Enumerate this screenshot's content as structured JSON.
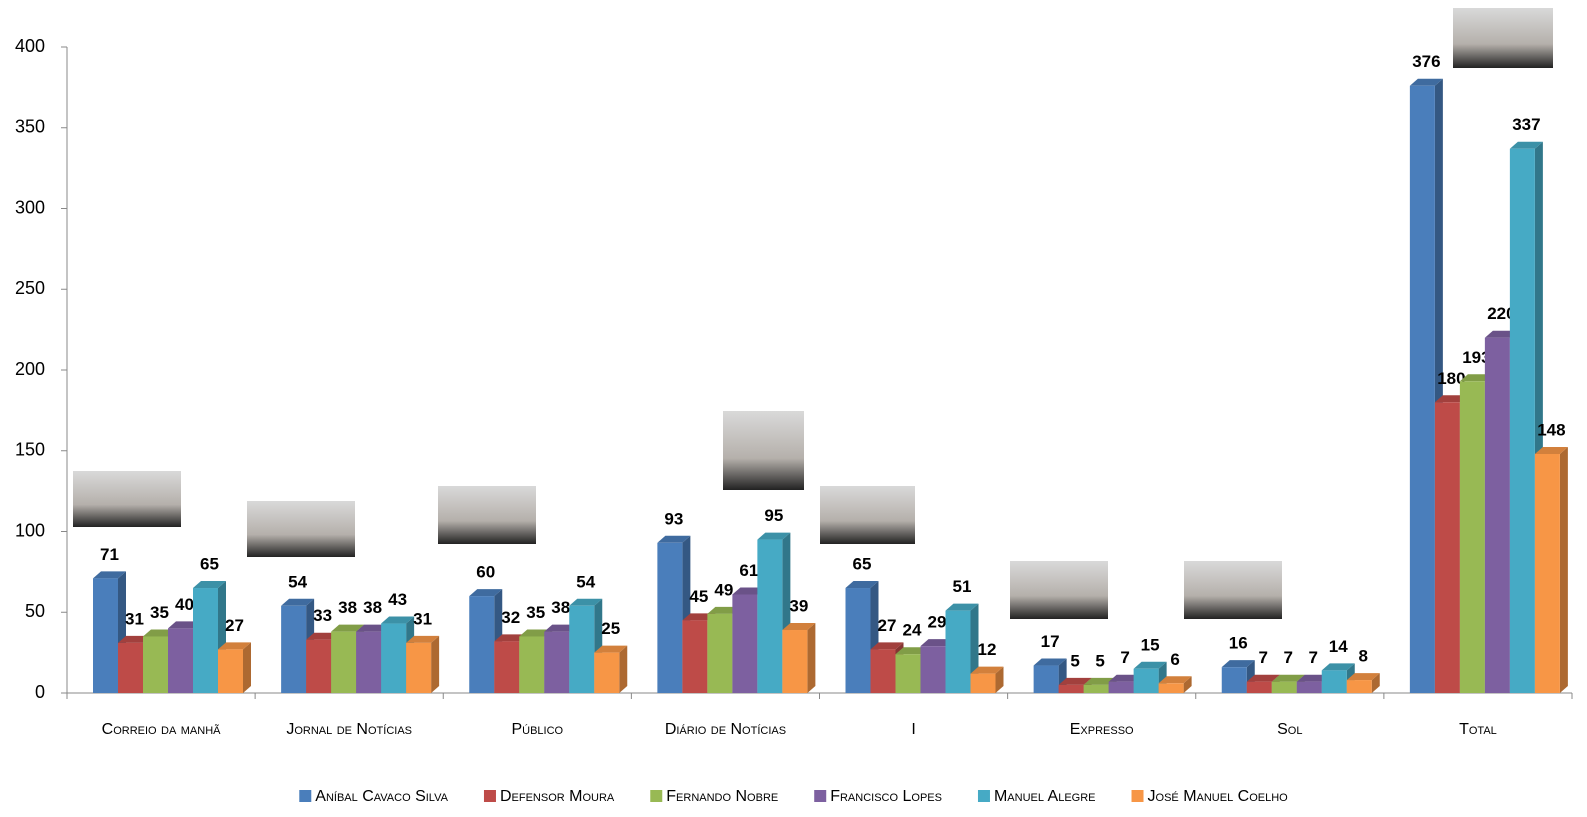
{
  "chart_data": {
    "type": "bar3d",
    "categories": [
      "Correio da manhã",
      "Jornal de Notícias",
      "Público",
      "Diário de Notícias",
      "I",
      "Expresso",
      "Sol",
      "Total"
    ],
    "series": [
      {
        "name": "Aníbal Cavaco Silva",
        "color": "#4a7ebb",
        "values": [
          71,
          54,
          60,
          93,
          65,
          17,
          16,
          376
        ]
      },
      {
        "name": "Defensor Moura",
        "color": "#be4b48",
        "values": [
          31,
          33,
          32,
          45,
          27,
          5,
          7,
          180
        ]
      },
      {
        "name": "Fernando Nobre",
        "color": "#98b954",
        "values": [
          35,
          38,
          35,
          49,
          24,
          5,
          7,
          193
        ]
      },
      {
        "name": "Francisco Lopes",
        "color": "#7d60a0",
        "values": [
          40,
          38,
          38,
          61,
          29,
          7,
          7,
          220
        ]
      },
      {
        "name": "Manuel Alegre",
        "color": "#46aac5",
        "values": [
          65,
          43,
          54,
          95,
          51,
          15,
          14,
          337
        ]
      },
      {
        "name": "José Manuel Coelho",
        "color": "#f79646",
        "values": [
          27,
          31,
          25,
          39,
          12,
          6,
          8,
          148
        ]
      }
    ],
    "ylim": [
      0,
      400
    ],
    "yticks": [
      0,
      50,
      100,
      150,
      200,
      250,
      300,
      350,
      400
    ],
    "legend": "bottom"
  }
}
